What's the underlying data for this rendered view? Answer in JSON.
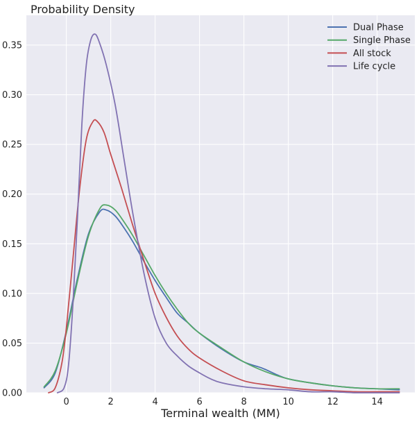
{
  "chart_data": {
    "type": "line",
    "title": "Probability Density",
    "xlabel": "Terminal wealth (MM)",
    "ylabel": "",
    "xlim": [
      -1.8,
      15.7
    ],
    "ylim": [
      0,
      0.38
    ],
    "xticks": [
      0,
      2,
      4,
      6,
      8,
      10,
      12,
      14
    ],
    "yticks": [
      0.0,
      0.05,
      0.1,
      0.15,
      0.2,
      0.25,
      0.3,
      0.35
    ],
    "xtick_labels": [
      "0",
      "2",
      "4",
      "6",
      "8",
      "10",
      "12",
      "14"
    ],
    "ytick_labels": [
      "0.00",
      "0.05",
      "0.10",
      "0.15",
      "0.20",
      "0.25",
      "0.30",
      "0.35"
    ],
    "grid": true,
    "background": "#EAEAF2",
    "legend_position": "top-right",
    "series": [
      {
        "name": "Dual Phase",
        "color": "#4C72B0",
        "x": [
          -1.0,
          -0.5,
          0,
          0.5,
          1.0,
          1.5,
          1.8,
          2.2,
          2.6,
          3.0,
          3.5,
          4.0,
          4.5,
          5.0,
          5.5,
          6.0,
          7.0,
          8.0,
          8.8,
          9.5,
          10.0,
          11.0,
          12.0,
          13.0,
          14.0,
          15.0
        ],
        "y": [
          0.005,
          0.02,
          0.062,
          0.115,
          0.16,
          0.182,
          0.184,
          0.178,
          0.166,
          0.152,
          0.132,
          0.113,
          0.096,
          0.08,
          0.07,
          0.06,
          0.044,
          0.031,
          0.025,
          0.018,
          0.014,
          0.01,
          0.007,
          0.005,
          0.004,
          0.003
        ]
      },
      {
        "name": "Single Phase",
        "color": "#55A868",
        "x": [
          -1.0,
          -0.5,
          0,
          0.5,
          1.0,
          1.5,
          1.8,
          2.2,
          2.6,
          3.0,
          3.5,
          4.0,
          4.5,
          5.0,
          5.5,
          6.0,
          7.0,
          8.0,
          9.0,
          10.0,
          11.0,
          12.0,
          13.0,
          14.0,
          15.0
        ],
        "y": [
          0.006,
          0.022,
          0.06,
          0.112,
          0.158,
          0.185,
          0.189,
          0.184,
          0.172,
          0.158,
          0.138,
          0.118,
          0.1,
          0.084,
          0.07,
          0.06,
          0.045,
          0.031,
          0.021,
          0.014,
          0.01,
          0.007,
          0.005,
          0.004,
          0.004
        ]
      },
      {
        "name": "All stock",
        "color": "#C44E52",
        "x": [
          -0.8,
          -0.5,
          -0.2,
          0,
          0.3,
          0.6,
          0.9,
          1.2,
          1.4,
          1.7,
          2.0,
          2.5,
          3.0,
          3.5,
          4.0,
          4.5,
          5.0,
          5.5,
          6.0,
          7.0,
          8.0,
          9.0,
          10.0,
          11.0,
          12.0,
          13.0,
          14.0,
          15.0
        ],
        "y": [
          0.0,
          0.005,
          0.03,
          0.065,
          0.135,
          0.205,
          0.255,
          0.273,
          0.273,
          0.262,
          0.24,
          0.205,
          0.168,
          0.133,
          0.1,
          0.076,
          0.057,
          0.044,
          0.035,
          0.022,
          0.012,
          0.008,
          0.005,
          0.003,
          0.002,
          0.001,
          0.001,
          0.001
        ]
      },
      {
        "name": "Life cycle",
        "color": "#8172B2",
        "x": [
          -0.4,
          -0.1,
          0.1,
          0.3,
          0.5,
          0.7,
          0.9,
          1.1,
          1.3,
          1.5,
          1.8,
          2.2,
          2.6,
          3.0,
          3.5,
          4.0,
          4.5,
          5.0,
          5.5,
          6.0,
          6.5,
          7.0,
          8.0,
          9.0,
          10.0,
          11.0,
          12.0,
          13.0,
          14.0,
          15.0
        ],
        "y": [
          0.0,
          0.005,
          0.028,
          0.09,
          0.175,
          0.27,
          0.33,
          0.355,
          0.361,
          0.352,
          0.33,
          0.29,
          0.235,
          0.18,
          0.12,
          0.075,
          0.05,
          0.037,
          0.027,
          0.02,
          0.014,
          0.01,
          0.006,
          0.004,
          0.003,
          0.001,
          0.001,
          0.0,
          0.0,
          0.0
        ]
      }
    ]
  }
}
